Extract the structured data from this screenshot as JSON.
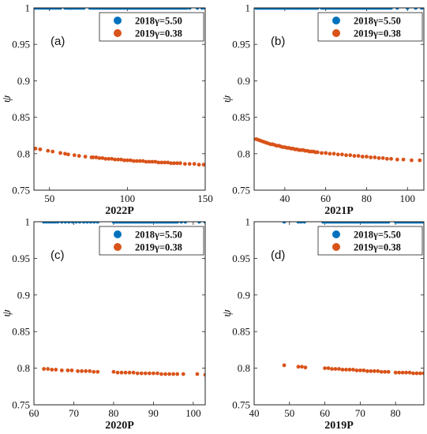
{
  "chart_data": [
    {
      "type": "scatter",
      "panel_label": "(a)",
      "xlabel": "2022P",
      "ylabel": "ψ",
      "xlim": [
        40,
        150
      ],
      "ylim": [
        0.75,
        1.0
      ],
      "xticks": [
        50,
        100,
        150
      ],
      "yticks": [
        0.75,
        0.8,
        0.85,
        0.9,
        0.95,
        1
      ],
      "legend": "top-right",
      "series": [
        {
          "name": "2018γ=5.50",
          "color": "#0072BD",
          "y": 1.0,
          "x_ranges": [
            [
              40,
              57,
              12
            ],
            [
              60,
              72,
              10
            ],
            [
              76,
              116,
              40
            ],
            [
              117,
              138,
              18
            ],
            [
              140,
              145,
              2
            ],
            [
              148,
              150,
              2
            ]
          ],
          "x_points": [
            63
          ]
        },
        {
          "name": "2019γ=0.38",
          "color": "#D95319",
          "x": [
            41,
            44,
            49,
            52,
            57,
            60,
            62,
            66,
            69,
            73,
            77,
            78,
            80,
            82,
            84,
            86,
            88,
            90,
            92,
            94,
            96,
            98,
            100,
            102,
            104,
            106,
            108,
            110,
            112,
            114,
            116,
            118,
            120,
            122,
            124,
            126,
            128,
            130,
            132,
            134,
            137,
            140,
            143,
            146,
            149
          ],
          "y": [
            0.807,
            0.806,
            0.804,
            0.803,
            0.801,
            0.8,
            0.799,
            0.798,
            0.797,
            0.796,
            0.795,
            0.795,
            0.795,
            0.794,
            0.794,
            0.793,
            0.793,
            0.793,
            0.792,
            0.792,
            0.792,
            0.791,
            0.791,
            0.791,
            0.79,
            0.79,
            0.79,
            0.79,
            0.789,
            0.789,
            0.789,
            0.789,
            0.788,
            0.788,
            0.788,
            0.788,
            0.787,
            0.787,
            0.787,
            0.787,
            0.786,
            0.786,
            0.786,
            0.785,
            0.785
          ]
        }
      ]
    },
    {
      "type": "scatter",
      "panel_label": "(b)",
      "xlabel": "2021P",
      "ylabel": "ψ",
      "xlim": [
        25,
        108
      ],
      "ylim": [
        0.75,
        1.0
      ],
      "xticks": [
        40,
        60,
        80,
        100
      ],
      "yticks": [
        0.75,
        0.8,
        0.85,
        0.9,
        0.95,
        1
      ],
      "legend": "top-right",
      "series": [
        {
          "name": "2018γ=5.50",
          "color": "#0072BD",
          "y": 1.0,
          "x_ranges": [
            [
              26,
              56,
              40
            ],
            [
              58,
              92,
              40
            ],
            [
              95,
              100,
              2
            ],
            [
              104,
              107,
              2
            ]
          ],
          "x_points": []
        },
        {
          "name": "2019γ=0.38",
          "color": "#D95319",
          "x": [
            26,
            27,
            28,
            29,
            30,
            31,
            32,
            33,
            34,
            35,
            36,
            37,
            38,
            39,
            40,
            41,
            42,
            43,
            44,
            45,
            46,
            47,
            48,
            49,
            50,
            51,
            52,
            53,
            54,
            55,
            56,
            58,
            60,
            62,
            64,
            66,
            68,
            70,
            72,
            74,
            76,
            78,
            80,
            82,
            84,
            86,
            88,
            90,
            92,
            95,
            98,
            102,
            106
          ],
          "y": [
            0.82,
            0.819,
            0.818,
            0.817,
            0.816,
            0.815,
            0.814,
            0.813,
            0.813,
            0.812,
            0.811,
            0.811,
            0.81,
            0.809,
            0.809,
            0.808,
            0.808,
            0.807,
            0.807,
            0.806,
            0.806,
            0.805,
            0.805,
            0.805,
            0.804,
            0.804,
            0.803,
            0.803,
            0.803,
            0.802,
            0.802,
            0.801,
            0.801,
            0.8,
            0.8,
            0.799,
            0.799,
            0.798,
            0.798,
            0.797,
            0.797,
            0.796,
            0.796,
            0.795,
            0.795,
            0.794,
            0.794,
            0.793,
            0.793,
            0.792,
            0.792,
            0.791,
            0.791
          ]
        }
      ]
    },
    {
      "type": "scatter",
      "panel_label": "(c)",
      "xlabel": "2020P",
      "ylabel": "ψ",
      "xlim": [
        60,
        103
      ],
      "ylim": [
        0.75,
        1.0
      ],
      "xticks": [
        60,
        70,
        80,
        90,
        100
      ],
      "yticks": [
        0.75,
        0.8,
        0.85,
        0.9,
        0.95,
        1
      ],
      "legend": "top-right",
      "series": [
        {
          "name": "2018γ=5.50",
          "color": "#0072BD",
          "y": 1.0,
          "x_ranges": [
            [
              62.5,
              66,
              6
            ],
            [
              67,
              71.5,
              6
            ],
            [
              72.5,
              76,
              5
            ],
            [
              80,
              96,
              36
            ],
            [
              97,
              98,
              2
            ]
          ],
          "x_points": [
            101.5,
            103
          ]
        },
        {
          "name": "2019γ=0.38",
          "color": "#D95319",
          "x": [
            62.5,
            63.5,
            64.5,
            65.5,
            67,
            68.5,
            69.5,
            71,
            72,
            73,
            74,
            75,
            76,
            80,
            81,
            82,
            83,
            84,
            85,
            86,
            87,
            88,
            89,
            90,
            91,
            92,
            93,
            94,
            95,
            96,
            97.5,
            101,
            103
          ],
          "y": [
            0.799,
            0.799,
            0.798,
            0.798,
            0.797,
            0.797,
            0.797,
            0.796,
            0.796,
            0.796,
            0.796,
            0.795,
            0.795,
            0.795,
            0.794,
            0.794,
            0.794,
            0.794,
            0.794,
            0.793,
            0.793,
            0.793,
            0.793,
            0.793,
            0.793,
            0.792,
            0.792,
            0.792,
            0.792,
            0.792,
            0.792,
            0.792,
            0.791
          ]
        }
      ]
    },
    {
      "type": "scatter",
      "panel_label": "(d)",
      "xlabel": "2019P",
      "ylabel": "ψ",
      "xlim": [
        40,
        88
      ],
      "ylim": [
        0.75,
        1.0
      ],
      "xticks": [
        40,
        50,
        60,
        70,
        80
      ],
      "yticks": [
        0.75,
        0.8,
        0.85,
        0.9,
        0.95,
        1
      ],
      "legend": "top-right",
      "series": [
        {
          "name": "2018γ=5.50",
          "color": "#0072BD",
          "y": 1.0,
          "x_ranges": [
            [
              59.5,
              78,
              40
            ],
            [
              80,
              88,
              16
            ]
          ],
          "x_points": [
            48.5,
            52.5,
            53.3,
            54.2
          ]
        },
        {
          "name": "2019γ=0.38",
          "color": "#D95319",
          "x": [
            48.5,
            52.5,
            53.5,
            54.5,
            60,
            61,
            62,
            63,
            64,
            65,
            66,
            67,
            68,
            69,
            70,
            71,
            72,
            73,
            74,
            75,
            76,
            77,
            78,
            80,
            81,
            82,
            83,
            84,
            85,
            86,
            87,
            88
          ],
          "y": [
            0.804,
            0.802,
            0.802,
            0.801,
            0.8,
            0.8,
            0.799,
            0.799,
            0.799,
            0.798,
            0.798,
            0.798,
            0.798,
            0.797,
            0.797,
            0.797,
            0.796,
            0.796,
            0.796,
            0.796,
            0.795,
            0.795,
            0.795,
            0.794,
            0.794,
            0.794,
            0.794,
            0.794,
            0.793,
            0.793,
            0.793,
            0.793
          ]
        }
      ]
    }
  ]
}
